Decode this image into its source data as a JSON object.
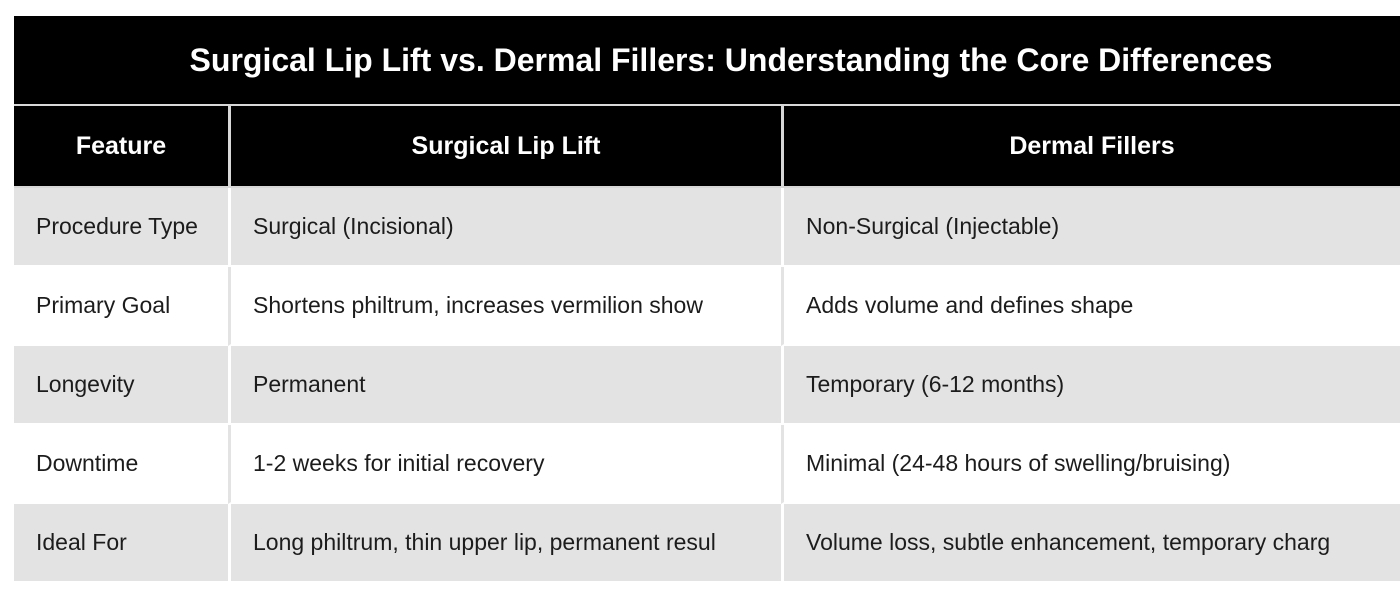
{
  "title": "Surgical Lip Lift vs. Dermal Fillers: Understanding the Core Differences",
  "headers": [
    "Feature",
    "Surgical Lip Lift",
    "Dermal Fillers"
  ],
  "rows": [
    {
      "feature": "Procedure Type",
      "surgical_lip_lift": "Surgical (Incisional)",
      "dermal_fillers": "Non-Surgical (Injectable)"
    },
    {
      "feature": "Primary Goal",
      "surgical_lip_lift": "Shortens philtrum, increases vermilion show",
      "dermal_fillers": "Adds volume and defines shape"
    },
    {
      "feature": "Longevity",
      "surgical_lip_lift": "Permanent",
      "dermal_fillers": "Temporary (6-12 months)"
    },
    {
      "feature": "Downtime",
      "surgical_lip_lift": "1-2 weeks for initial recovery",
      "dermal_fillers": "Minimal (24-48 hours of swelling/bruising)"
    },
    {
      "feature": "Ideal For",
      "surgical_lip_lift": "Long philtrum, thin upper lip, permanent resul",
      "dermal_fillers": "Volume loss, subtle enhancement, temporary charg"
    }
  ],
  "colors": {
    "header_bg": "#000000",
    "header_text": "#ffffff",
    "row_alt_bg": "#e3e3e3",
    "row_plain_bg": "#ffffff"
  }
}
